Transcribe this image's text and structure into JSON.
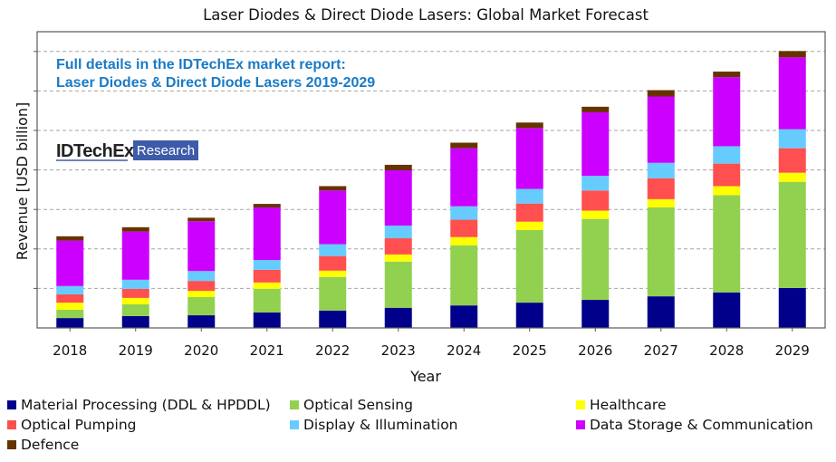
{
  "chart_data": {
    "type": "bar",
    "stacked": true,
    "title": "Laser Diodes & Direct Diode Lasers: Global Market Forecast",
    "xlabel": "Year",
    "ylabel": "Revenue [USD billion]",
    "ytick_labels_shown": false,
    "ylim": [
      0,
      7.5
    ],
    "grid": true,
    "gridline_step": 1,
    "legend_position": "bottom",
    "categories": [
      "2018",
      "2019",
      "2020",
      "2021",
      "2022",
      "2023",
      "2024",
      "2025",
      "2026",
      "2027",
      "2028",
      "2029"
    ],
    "series": [
      {
        "name": "Material Processing (DDL & HPDDL)",
        "color": "#00008B",
        "values": [
          0.25,
          0.3,
          0.32,
          0.39,
          0.44,
          0.51,
          0.57,
          0.64,
          0.71,
          0.8,
          0.9,
          1.01
        ]
      },
      {
        "name": "Optical Sensing",
        "color": "#92D050",
        "values": [
          0.21,
          0.3,
          0.46,
          0.6,
          0.85,
          1.17,
          1.52,
          1.84,
          2.05,
          2.25,
          2.46,
          2.69
        ]
      },
      {
        "name": "Healthcare",
        "color": "#FFFF00",
        "values": [
          0.18,
          0.16,
          0.16,
          0.16,
          0.16,
          0.18,
          0.21,
          0.21,
          0.21,
          0.21,
          0.23,
          0.23
        ]
      },
      {
        "name": "Optical Pumping",
        "color": "#FF4F4F",
        "values": [
          0.21,
          0.23,
          0.25,
          0.32,
          0.37,
          0.41,
          0.44,
          0.46,
          0.51,
          0.53,
          0.57,
          0.62
        ]
      },
      {
        "name": "Display & Illumination",
        "color": "#66CCFF",
        "values": [
          0.21,
          0.23,
          0.25,
          0.25,
          0.3,
          0.32,
          0.34,
          0.37,
          0.37,
          0.39,
          0.44,
          0.48
        ]
      },
      {
        "name": "Data Storage & Communication",
        "color": "#CC00FF",
        "values": [
          1.15,
          1.22,
          1.26,
          1.33,
          1.36,
          1.4,
          1.47,
          1.54,
          1.61,
          1.68,
          1.75,
          1.82
        ]
      },
      {
        "name": "Defence",
        "color": "#663300",
        "values": [
          0.11,
          0.11,
          0.09,
          0.09,
          0.11,
          0.14,
          0.14,
          0.14,
          0.14,
          0.16,
          0.14,
          0.16
        ]
      }
    ],
    "legend_order": [
      0,
      1,
      2,
      3,
      4,
      5,
      6
    ],
    "annotations": {
      "promo_line1": "Full details in the IDTechEx market report:",
      "promo_line2": "Laser Diodes & Direct Diode Lasers 2019-2029",
      "logo_name": "IDTechEx",
      "logo_badge": "Research"
    }
  },
  "colors": {
    "promo_text": "#1A7AC6",
    "logo_badge": "#3D5BA9",
    "gridline": "#A6A6A6",
    "axis": "#595959"
  }
}
